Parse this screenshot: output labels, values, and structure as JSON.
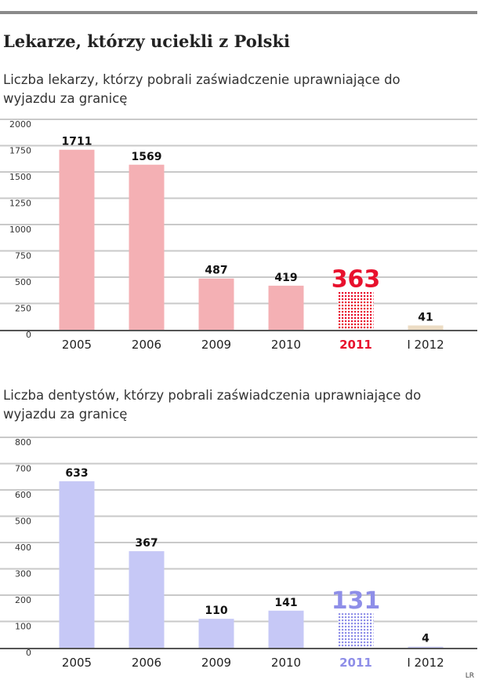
{
  "title": "Lekarze, którzy uciekli z Polski",
  "credit": "LR",
  "chart_data": [
    {
      "type": "bar",
      "title": "Liczba lekarzy, którzy pobrali zaświadczenie uprawniające do wyjazdu za granicę",
      "categories": [
        "2005",
        "2006",
        "2009",
        "2010",
        "2011",
        "I 2012"
      ],
      "values": [
        1711,
        1569,
        487,
        419,
        363,
        41
      ],
      "value_labels": [
        "1711",
        "1569",
        "487",
        "419",
        "363",
        "41"
      ],
      "yticks": [
        "2000",
        "1750",
        "1500",
        "1250",
        "1000",
        "750",
        "500",
        "250",
        "0"
      ],
      "ylim": [
        0,
        2000
      ],
      "grid": true,
      "colors": {
        "bar": "#f4b0b4",
        "highlight": "#e8112d",
        "partial": "#ecdcc4",
        "grid": "#c9c9c9",
        "axis": "#555555"
      },
      "highlight_index": 4,
      "partial_index": 5
    },
    {
      "type": "bar",
      "title": "Liczba dentystów, którzy pobrali zaświadczenia uprawniające do wyjazdu za granicę",
      "categories": [
        "2005",
        "2006",
        "2009",
        "2010",
        "2011",
        "I 2012"
      ],
      "values": [
        633,
        367,
        110,
        141,
        131,
        4
      ],
      "value_labels": [
        "633",
        "367",
        "110",
        "141",
        "131",
        "4"
      ],
      "yticks": [
        "800",
        "700",
        "600",
        "500",
        "400",
        "300",
        "200",
        "100",
        "0"
      ],
      "ylim": [
        0,
        800
      ],
      "grid": true,
      "colors": {
        "bar": "#c6c8f6",
        "highlight": "#8e8ee8",
        "partial": "#c6c8f6",
        "grid": "#c9c9c9",
        "axis": "#555555"
      },
      "highlight_index": 4,
      "partial_index": 5
    }
  ]
}
